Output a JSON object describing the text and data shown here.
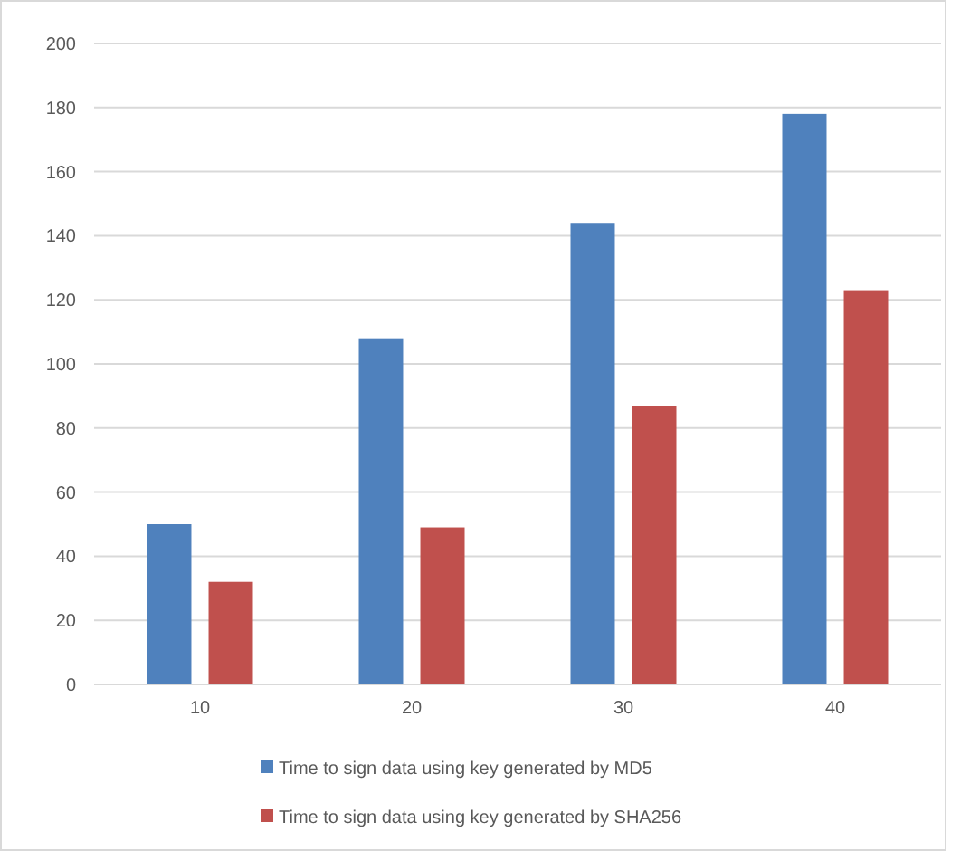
{
  "chart_data": {
    "type": "bar",
    "categories": [
      "10",
      "20",
      "30",
      "40"
    ],
    "series": [
      {
        "name": "Time to sign data using key generated by MD5",
        "color": "#4f81bd",
        "values": [
          50,
          108,
          144,
          178
        ]
      },
      {
        "name": "Time to sign data using key generated by SHA256",
        "color": "#c0504d",
        "values": [
          32,
          49,
          87,
          123
        ]
      }
    ],
    "ylim": [
      0,
      200
    ],
    "yticks": [
      0,
      20,
      40,
      60,
      80,
      100,
      120,
      140,
      160,
      180,
      200
    ],
    "grid": "y",
    "legend": "bottom"
  }
}
